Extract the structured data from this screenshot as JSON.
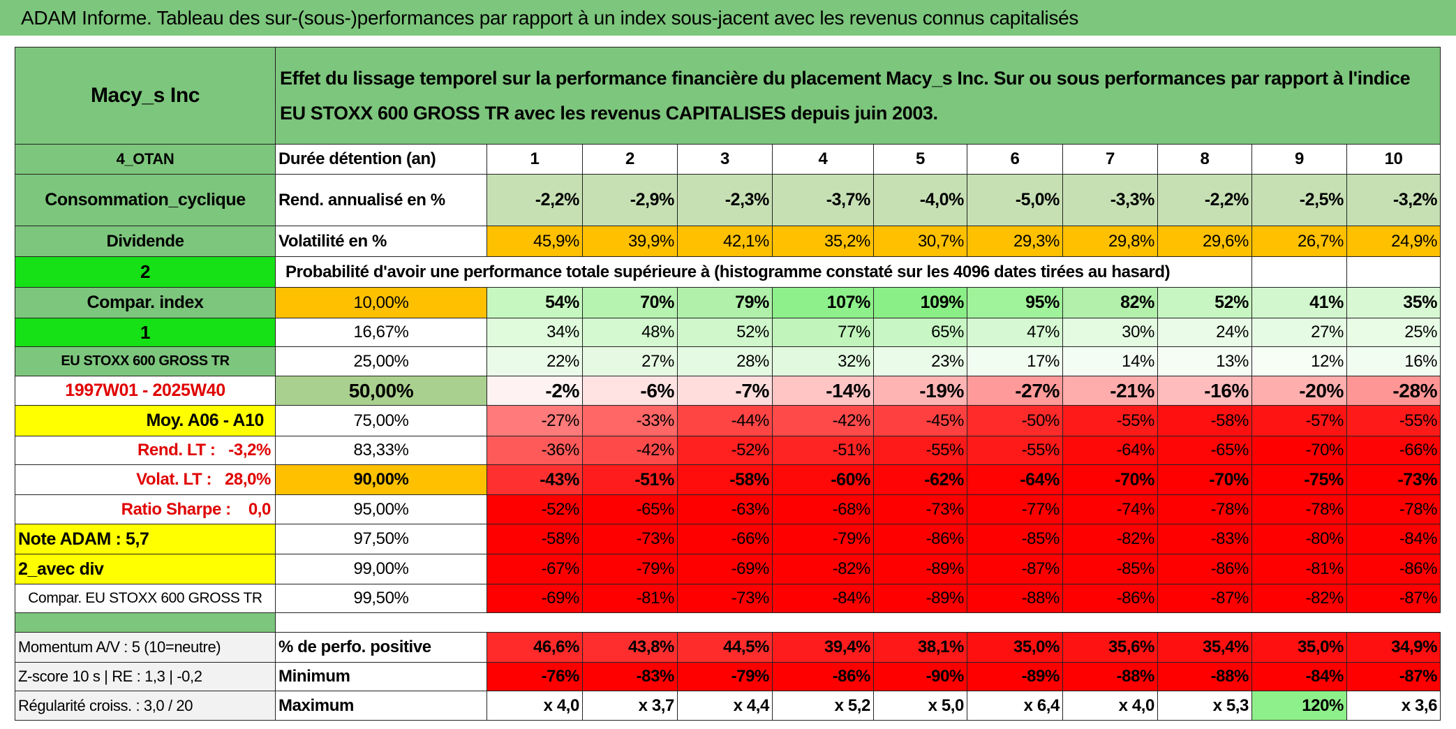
{
  "title": "ADAM Informe. Tableau des sur-(sous-)performances par rapport à un index sous-jacent avec les revenus connus capitalisés",
  "table": {
    "header": {
      "name": "Macy_s Inc",
      "description": "Effet du lissage temporel sur la performance financière du placement Macy_s Inc. Sur ou sous performances par rapport à l'indice EU STOXX 600 GROSS TR avec les revenus CAPITALISES depuis juin 2003."
    },
    "rows": [
      {
        "label": "4_OTAN",
        "label_fill": "#7dc67d",
        "metric": "Durée détention (an)",
        "values": [
          "1",
          "2",
          "3",
          "4",
          "5",
          "6",
          "7",
          "8",
          "9",
          "10"
        ],
        "fill": "#ffffff"
      },
      {
        "label": "Consommation_cyclique",
        "label_fill": "#7dc67d",
        "metric": "Rend. annualisé en %",
        "values": [
          "-2,2%",
          "-2,9%",
          "-2,3%",
          "-3,7%",
          "-4,0%",
          "-5,0%",
          "-3,3%",
          "-2,2%",
          "-2,5%",
          "-3,2%"
        ],
        "fill": "#c6e0b4"
      },
      {
        "label": "Dividende",
        "label_fill": "#7dc67d",
        "metric": "Volatilité en %",
        "values": [
          "45,9%",
          "39,9%",
          "42,1%",
          "35,2%",
          "30,7%",
          "29,3%",
          "29,8%",
          "29,6%",
          "26,7%",
          "24,9%"
        ],
        "fill": "#ffc000"
      },
      {
        "label": "2",
        "label_fill": "#16e016",
        "text": "Probabilité d'avoir une performance totale supérieure à (histogramme constaté sur les 4096 dates tirées au hasard)"
      },
      {
        "label": "Compar. index",
        "label_fill": "#7dc67d",
        "metric": "10,00%",
        "metric_fill": "#ffc000",
        "values": [
          "54%",
          "70%",
          "79%",
          "107%",
          "109%",
          "95%",
          "82%",
          "52%",
          "41%",
          "35%"
        ],
        "fills": [
          "#c6f7c0",
          "#b6f2b0",
          "#b0f0aa",
          "#8ef08a",
          "#8aef86",
          "#a0f29b",
          "#b2f0ac",
          "#c8f6c2",
          "#d2f7ce",
          "#d8f8d4"
        ]
      },
      {
        "label": "1",
        "label_fill": "#16e016",
        "metric": "16,67%",
        "values": [
          "34%",
          "48%",
          "52%",
          "77%",
          "65%",
          "47%",
          "30%",
          "24%",
          "27%",
          "25%"
        ],
        "fills": [
          "#dffbdc",
          "#d4f8d0",
          "#d0f7cc",
          "#c0f4bb",
          "#c8f6c4",
          "#d6f8d2",
          "#e4fbe2",
          "#eafce8",
          "#e6fbe4",
          "#e8fce6"
        ]
      },
      {
        "label": "EU STOXX 600 GROSS TR",
        "label_fill": "#7dc67d",
        "metric": "25,00%",
        "values": [
          "22%",
          "27%",
          "28%",
          "32%",
          "23%",
          "17%",
          "14%",
          "13%",
          "12%",
          "16%"
        ],
        "fills": [
          "#ebfbe9",
          "#e6fae3",
          "#e5fae2",
          "#e1f9de",
          "#ebfbe9",
          "#f1fdf0",
          "#f4fdf3",
          "#f5fdf4",
          "#f6fef5",
          "#f2fdf1"
        ]
      },
      {
        "label": "1997W01 - 2025W40",
        "label_fill": "#ffffff",
        "metric": "50,00%",
        "metric_fill": "#a9d08e",
        "values": [
          "-2%",
          "-6%",
          "-7%",
          "-14%",
          "-19%",
          "-27%",
          "-21%",
          "-16%",
          "-20%",
          "-28%"
        ],
        "fills": [
          "#fff2f2",
          "#ffe3e3",
          "#ffdddd",
          "#ffc4c4",
          "#ffb4b4",
          "#ff9a9a",
          "#ffacac",
          "#ffbcbc",
          "#ffaeae",
          "#ff9696"
        ]
      },
      {
        "label": "Moy. A06 - A10",
        "label_fill": "#ffff00",
        "metric": "75,00%",
        "values": [
          "-27%",
          "-33%",
          "-44%",
          "-42%",
          "-45%",
          "-50%",
          "-55%",
          "-58%",
          "-57%",
          "-55%"
        ],
        "fills": [
          "#ff7a7a",
          "#ff6666",
          "#ff4444",
          "#ff4a4a",
          "#ff4040",
          "#ff2a2a",
          "#ff1a1a",
          "#ff1010",
          "#ff1414",
          "#ff1a1a"
        ]
      },
      {
        "label": "Rend. LT :   -3,2%",
        "label_fill": "#ffffff",
        "metric": "83,33%",
        "values": [
          "-36%",
          "-42%",
          "-52%",
          "-51%",
          "-55%",
          "-55%",
          "-64%",
          "-65%",
          "-70%",
          "-66%"
        ],
        "fills": [
          "#ff5a5a",
          "#ff4a4a",
          "#ff2020",
          "#ff2424",
          "#ff1a1a",
          "#ff1a1a",
          "#ff0808",
          "#ff0606",
          "#ff0000",
          "#ff0404"
        ]
      },
      {
        "label": "Volat. LT :   28,0%",
        "label_fill": "#ffffff",
        "metric": "90,00%",
        "metric_fill": "#ffc000",
        "values": [
          "-43%",
          "-51%",
          "-58%",
          "-60%",
          "-62%",
          "-64%",
          "-70%",
          "-70%",
          "-75%",
          "-73%"
        ],
        "fills": [
          "#ff3030",
          "#ff1c1c",
          "#ff0c0c",
          "#ff0808",
          "#ff0404",
          "#ff0202",
          "#ff0000",
          "#ff0000",
          "#ff0000",
          "#ff0000"
        ]
      },
      {
        "label": "Ratio Sharpe :    0,0",
        "label_fill": "#ffffff",
        "metric": "95,00%",
        "values": [
          "-52%",
          "-65%",
          "-63%",
          "-68%",
          "-73%",
          "-77%",
          "-74%",
          "-78%",
          "-78%",
          "-78%"
        ],
        "fill": "#ff0000"
      },
      {
        "label": "Note ADAM : 5,7",
        "label_fill": "#ffff00",
        "metric": "97,50%",
        "values": [
          "-58%",
          "-73%",
          "-66%",
          "-79%",
          "-86%",
          "-85%",
          "-82%",
          "-83%",
          "-80%",
          "-84%"
        ],
        "fill": "#ff0000"
      },
      {
        "label": "2_avec div",
        "label_fill": "#ffff00",
        "metric": "99,00%",
        "values": [
          "-67%",
          "-79%",
          "-69%",
          "-82%",
          "-89%",
          "-87%",
          "-85%",
          "-86%",
          "-81%",
          "-86%"
        ],
        "fill": "#ff0000"
      },
      {
        "label": "Compar. EU STOXX 600 GROSS TR",
        "label_fill": "#ffffff",
        "metric": "99,50%",
        "values": [
          "-69%",
          "-81%",
          "-73%",
          "-84%",
          "-89%",
          "-88%",
          "-86%",
          "-87%",
          "-82%",
          "-87%"
        ],
        "fill": "#ff0000"
      },
      {
        "label": "Momentum A/V : 5 (10=neutre)",
        "label_fill": "#f2f2f2",
        "metric": "% de perfo. positive",
        "values": [
          "46,6%",
          "43,8%",
          "44,5%",
          "39,4%",
          "38,1%",
          "35,0%",
          "35,6%",
          "35,4%",
          "35,0%",
          "34,9%"
        ],
        "fills": [
          "#ff2a2a",
          "#ff2e2e",
          "#ff2c2c",
          "#ff1c1c",
          "#ff1818",
          "#ff1010",
          "#ff1212",
          "#ff1010",
          "#ff1010",
          "#ff1010"
        ]
      },
      {
        "label": "Z-score 10 s | RE : 1,3 | -0,2",
        "label_fill": "#f2f2f2",
        "metric": "Minimum",
        "values": [
          "-76%",
          "-83%",
          "-79%",
          "-86%",
          "-90%",
          "-89%",
          "-88%",
          "-88%",
          "-84%",
          "-87%"
        ],
        "fill": "#ff0000"
      },
      {
        "label": "Régularité croiss. : 3,0 / 20",
        "label_fill": "#f2f2f2",
        "metric": "Maximum",
        "values": [
          "x 4,0",
          "x 3,7",
          "x 4,4",
          "x 5,2",
          "x 5,0",
          "x 6,4",
          "x 4,0",
          "x 5,3",
          "120%",
          "x 3,6"
        ],
        "fills": [
          "#ffffff",
          "#ffffff",
          "#ffffff",
          "#ffffff",
          "#ffffff",
          "#ffffff",
          "#ffffff",
          "#ffffff",
          "#8ef08a",
          "#ffffff"
        ]
      }
    ]
  }
}
